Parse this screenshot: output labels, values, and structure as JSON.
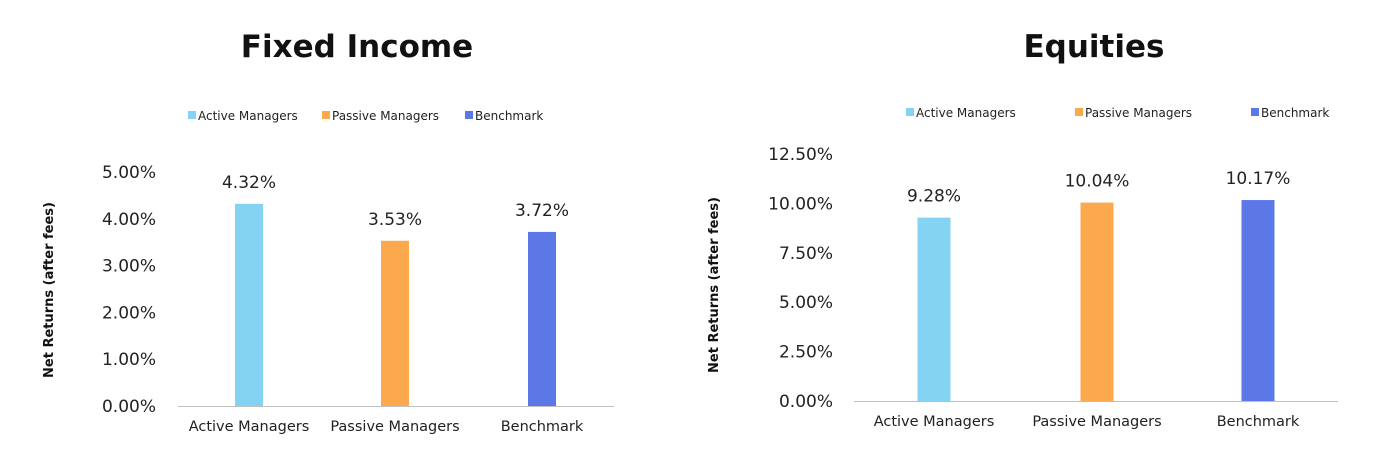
{
  "chart_data": [
    {
      "type": "bar",
      "title": "Fixed Income",
      "ylabel": "Net Returns (after fees)",
      "categories": [
        "Active Managers",
        "Passive Managers",
        "Benchmark"
      ],
      "values": [
        4.32,
        3.53,
        3.72
      ],
      "data_labels": [
        "4.32%",
        "3.53%",
        "3.72%"
      ],
      "colors": [
        "#85d3f2",
        "#fba84f",
        "#5b78e6"
      ],
      "legend": [
        "Active Managers",
        "Passive Managers",
        "Benchmark"
      ],
      "legend_position": "top",
      "ylim": [
        0,
        5
      ],
      "yticks": [
        0,
        1,
        2,
        3,
        4,
        5
      ],
      "ytick_labels": [
        "0.00%",
        "1.00%",
        "2.00%",
        "3.00%",
        "4.00%",
        "5.00%"
      ],
      "grid": false
    },
    {
      "type": "bar",
      "title": "Equities",
      "ylabel": "Net Returns (after fees)",
      "categories": [
        "Active Managers",
        "Passive Managers",
        "Benchmark"
      ],
      "values": [
        9.28,
        10.04,
        10.17
      ],
      "data_labels": [
        "9.28%",
        "10.04%",
        "10.17%"
      ],
      "colors": [
        "#85d3f2",
        "#fba84f",
        "#5b78e6"
      ],
      "legend": [
        "Active Managers",
        "Passive Managers",
        "Benchmark"
      ],
      "legend_position": "top",
      "ylim": [
        0,
        12.5
      ],
      "yticks": [
        0,
        2.5,
        5,
        7.5,
        10,
        12.5
      ],
      "ytick_labels": [
        "0.00%",
        "2.50%",
        "5.00%",
        "7.50%",
        "10.00%",
        "12.50%"
      ],
      "grid": false
    }
  ]
}
